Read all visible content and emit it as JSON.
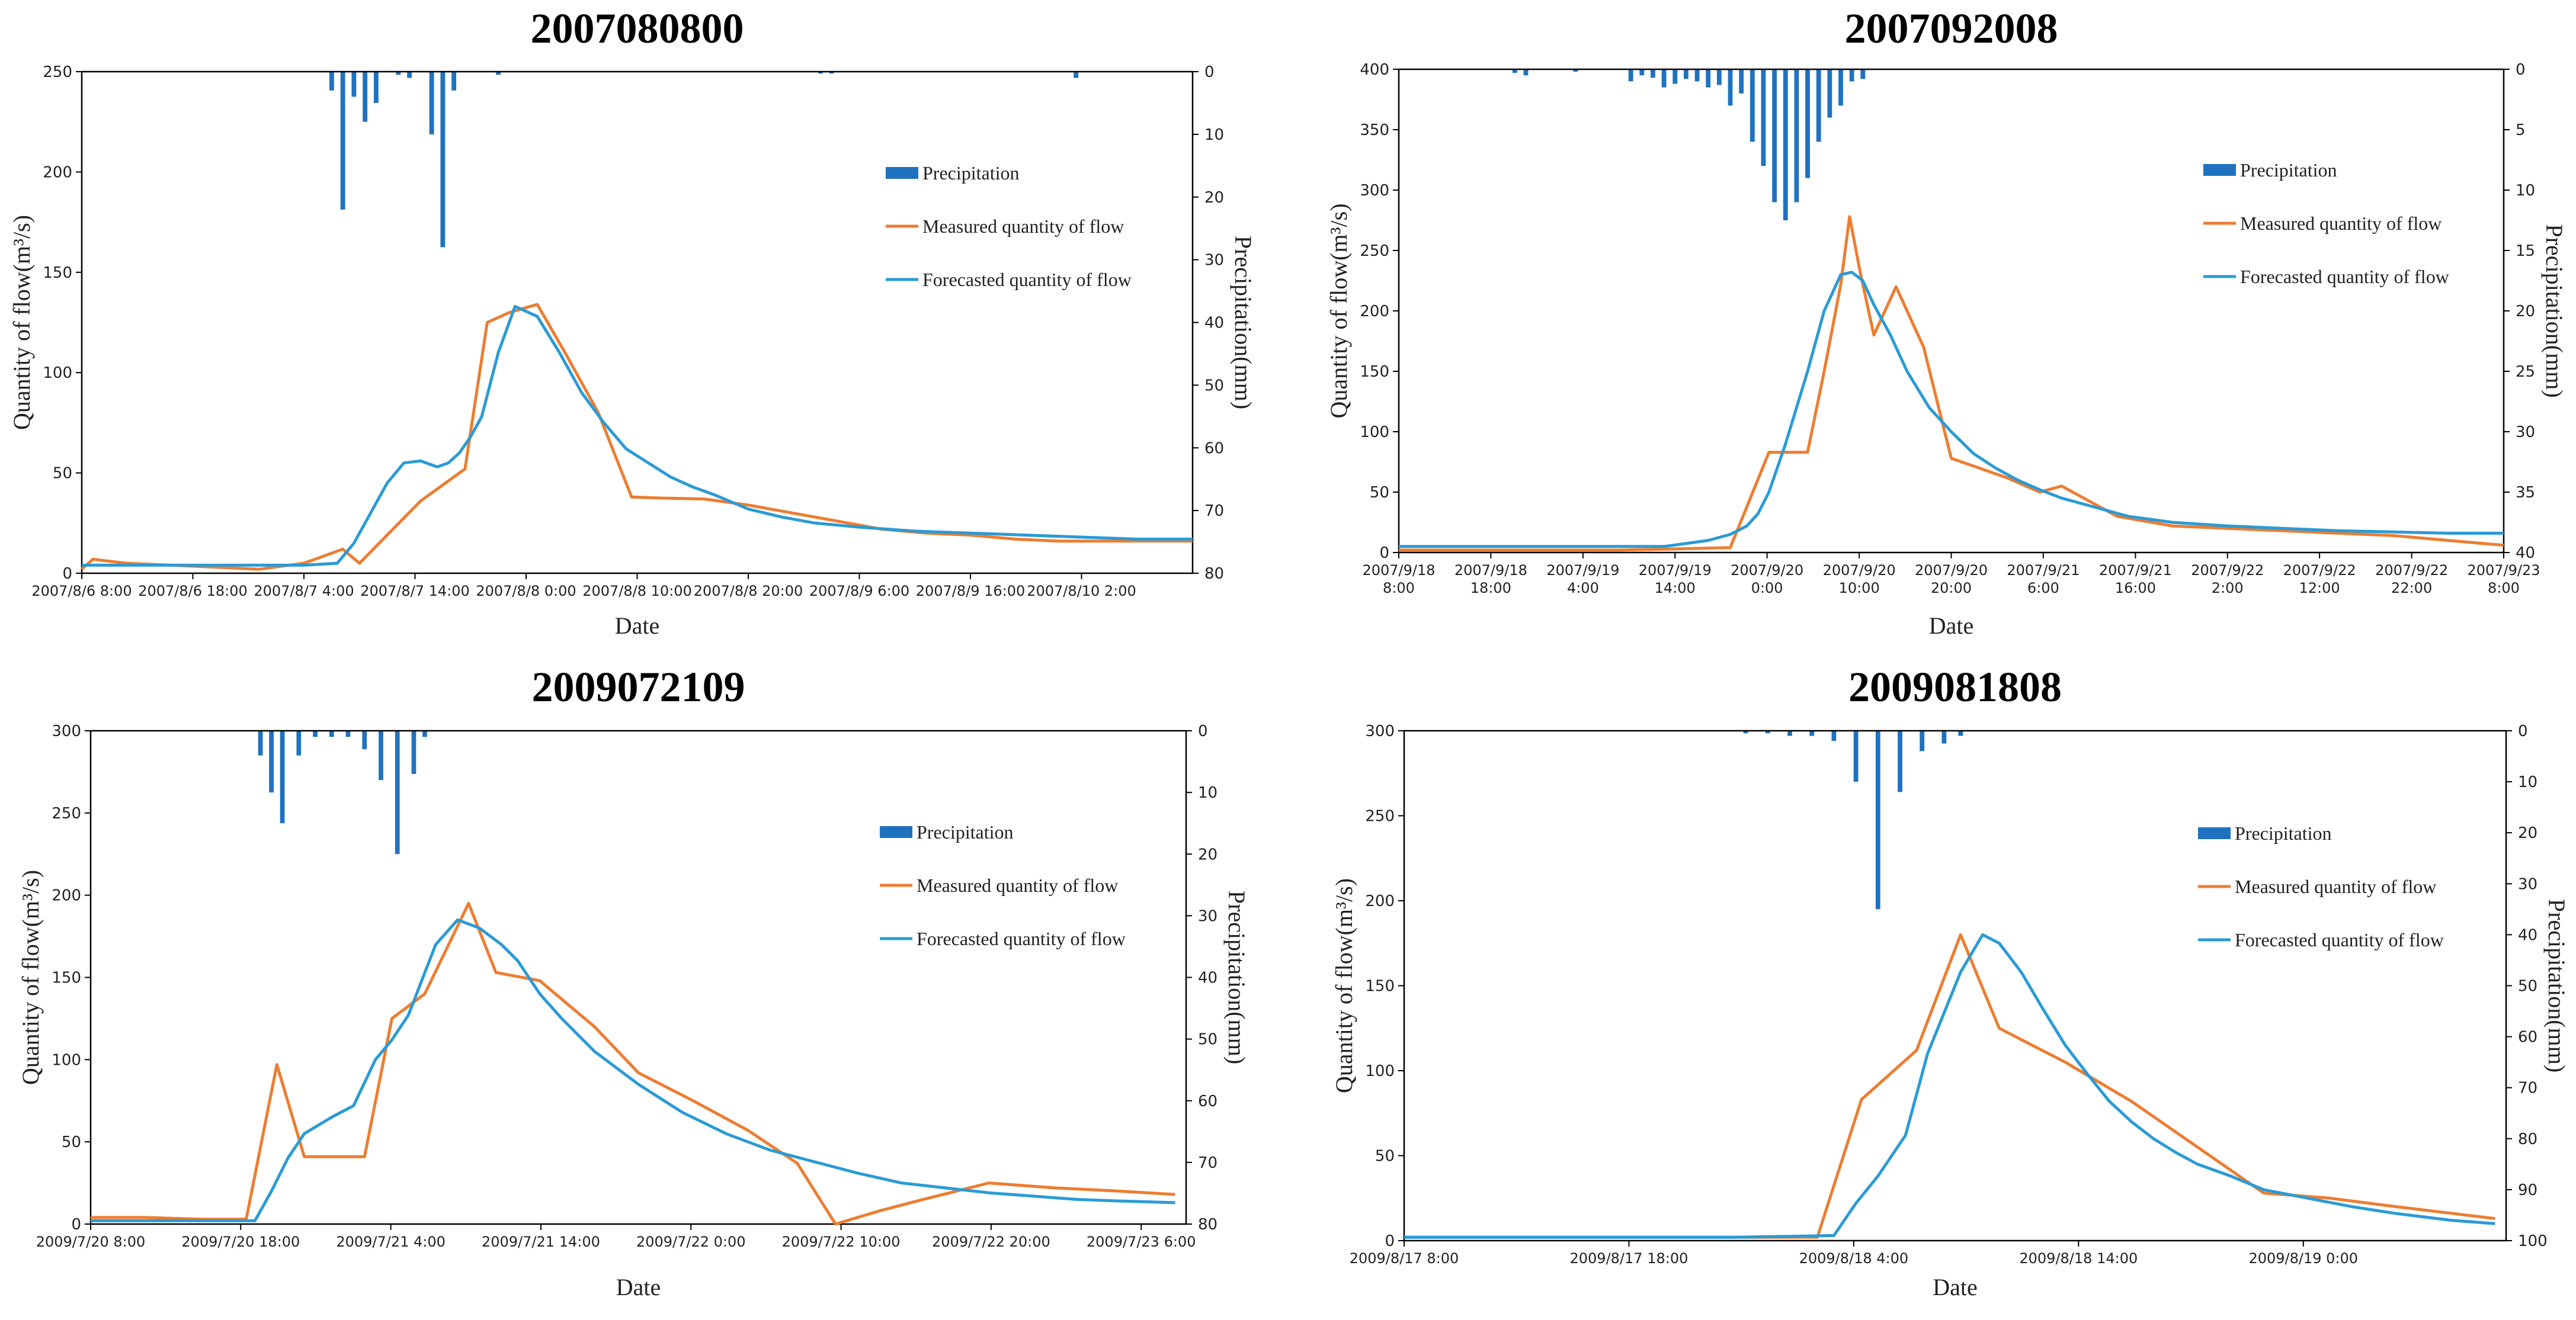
{
  "colors": {
    "measured": "#ED7D31",
    "forecast": "#2A9BD6",
    "precip": "#1F72C0",
    "axis": "#000000"
  },
  "legend_labels": {
    "precipitation": "Precipitation",
    "measured": "Measured quantity of flow",
    "forecast": "Forecasted quantity of flow"
  },
  "chart_data": [
    {
      "type": "line",
      "title": "2007080800",
      "xlabel": "Date",
      "ylabel": "Quantity of flow(m³/s)",
      "y2label": "Precipitation(mm)",
      "legend_position": "right",
      "xlim": [
        0,
        100
      ],
      "ylim": [
        0,
        250
      ],
      "yticks": [
        0,
        50,
        100,
        150,
        200,
        250
      ],
      "y2lim": [
        0,
        80
      ],
      "y2ticks": [
        0,
        10,
        20,
        30,
        40,
        50,
        60,
        70,
        80
      ],
      "x_tick_labels": [
        {
          "x": 0,
          "lines": [
            "2007/8/6 8:00"
          ]
        },
        {
          "x": 10,
          "lines": [
            "2007/8/6 18:00"
          ]
        },
        {
          "x": 20,
          "lines": [
            "2007/8/7 4:00"
          ]
        },
        {
          "x": 30,
          "lines": [
            "2007/8/7 14:00"
          ]
        },
        {
          "x": 40,
          "lines": [
            "2007/8/8 0:00"
          ]
        },
        {
          "x": 50,
          "lines": [
            "2007/8/8 10:00"
          ]
        },
        {
          "x": 60,
          "lines": [
            "2007/8/8 20:00"
          ]
        },
        {
          "x": 70,
          "lines": [
            "2007/8/9 6:00"
          ]
        },
        {
          "x": 80,
          "lines": [
            "2007/8/9 16:00"
          ]
        },
        {
          "x": 90,
          "lines": [
            "2007/8/10 2:00"
          ]
        }
      ],
      "series": [
        {
          "name": "Measured quantity of flow",
          "color_key": "measured",
          "x": [
            0,
            1,
            4,
            8,
            12,
            16,
            20,
            23.5,
            25,
            30.5,
            34.5,
            36.5,
            38.5,
            41,
            43.5,
            46.5,
            49.5,
            52,
            56,
            60,
            64,
            68,
            72,
            76,
            80,
            84,
            88,
            92,
            96,
            100
          ],
          "y": [
            2,
            7,
            5,
            4,
            3,
            2,
            5,
            12,
            5,
            36,
            52,
            125,
            130,
            134,
            110,
            80,
            38,
            37.5,
            37,
            34,
            30,
            26,
            22,
            20,
            19,
            17,
            16,
            16,
            16,
            16
          ]
        },
        {
          "name": "Forecasted quantity of flow",
          "color_key": "forecast",
          "x": [
            0,
            5,
            10,
            15,
            20,
            23,
            24.5,
            26,
            27.5,
            29,
            30.5,
            32,
            33,
            34,
            35,
            36,
            37.5,
            39,
            41,
            43,
            45,
            47,
            49,
            51,
            53,
            55,
            57,
            60,
            63,
            66,
            70,
            75,
            80,
            85,
            90,
            95,
            100
          ],
          "y": [
            4,
            4,
            4,
            4,
            4,
            5,
            15,
            30,
            45,
            55,
            56,
            53,
            55,
            60,
            68,
            78,
            110,
            133,
            128,
            110,
            90,
            75,
            62,
            55,
            48,
            43,
            39,
            32,
            28,
            25,
            23,
            21,
            20,
            19,
            18,
            17,
            17
          ]
        }
      ],
      "bars": {
        "name": "Precipitation",
        "color_key": "precip",
        "x": [
          22.5,
          23.5,
          24.5,
          25.5,
          26.5,
          28.5,
          29.5,
          31.5,
          32.5,
          33.5,
          37.5,
          66.5,
          67.5,
          89.5
        ],
        "y": [
          3,
          22,
          4,
          8,
          5,
          0.5,
          1,
          10,
          28,
          3,
          0.5,
          0.3,
          0.3,
          1
        ]
      }
    },
    {
      "type": "line",
      "title": "2007092008",
      "xlabel": "Date",
      "ylabel": "Quantity of flow(m³/s)",
      "y2label": "Precipitation(mm)",
      "legend_position": "right",
      "xlim": [
        0,
        100
      ],
      "ylim": [
        0,
        400
      ],
      "yticks": [
        0,
        50,
        100,
        150,
        200,
        250,
        300,
        350,
        400
      ],
      "y2lim": [
        0,
        40
      ],
      "y2ticks": [
        0,
        5,
        10,
        15,
        20,
        25,
        30,
        35,
        40
      ],
      "x_tick_labels": [
        {
          "x": 0,
          "lines": [
            "2007/9/18",
            "8:00"
          ]
        },
        {
          "x": 8.33,
          "lines": [
            "2007/9/18",
            "18:00"
          ]
        },
        {
          "x": 16.67,
          "lines": [
            "2007/9/19",
            "4:00"
          ]
        },
        {
          "x": 25,
          "lines": [
            "2007/9/19",
            "14:00"
          ]
        },
        {
          "x": 33.33,
          "lines": [
            "2007/9/20",
            "0:00"
          ]
        },
        {
          "x": 41.67,
          "lines": [
            "2007/9/20",
            "10:00"
          ]
        },
        {
          "x": 50,
          "lines": [
            "2007/9/20",
            "20:00"
          ]
        },
        {
          "x": 58.33,
          "lines": [
            "2007/9/21",
            "6:00"
          ]
        },
        {
          "x": 66.67,
          "lines": [
            "2007/9/21",
            "16:00"
          ]
        },
        {
          "x": 75,
          "lines": [
            "2007/9/22",
            "2:00"
          ]
        },
        {
          "x": 83.33,
          "lines": [
            "2007/9/22",
            "12:00"
          ]
        },
        {
          "x": 91.67,
          "lines": [
            "2007/9/22",
            "22:00"
          ]
        },
        {
          "x": 100,
          "lines": [
            "2007/9/23",
            "8:00"
          ]
        }
      ],
      "series": [
        {
          "name": "Measured quantity of flow",
          "color_key": "measured",
          "x": [
            0,
            10,
            20,
            25,
            30,
            33.5,
            37,
            38.5,
            40,
            40.8,
            41.8,
            43,
            45,
            47.5,
            50,
            55,
            58,
            60,
            63,
            65,
            70,
            80,
            90,
            100
          ],
          "y": [
            2,
            2,
            2,
            3,
            4,
            83,
            83,
            150,
            222,
            278,
            230,
            180,
            220,
            170,
            78,
            62,
            50,
            55,
            40,
            30,
            22,
            18,
            14,
            6
          ]
        },
        {
          "name": "Forecasted quantity of flow",
          "color_key": "forecast",
          "x": [
            0,
            10,
            20,
            24,
            28,
            30,
            31.5,
            32.5,
            33.5,
            35,
            37,
            38.5,
            40,
            41,
            42,
            43,
            44.5,
            46,
            48,
            50,
            52,
            54,
            56,
            58,
            60,
            62,
            64,
            66,
            70,
            75,
            80,
            85,
            90,
            95,
            100
          ],
          "y": [
            5,
            5,
            5,
            5,
            10,
            15,
            22,
            32,
            50,
            90,
            150,
            200,
            230,
            232,
            225,
            205,
            180,
            150,
            120,
            100,
            82,
            70,
            60,
            52,
            45,
            40,
            35,
            30,
            25,
            22,
            20,
            18,
            17,
            16,
            16
          ]
        }
      ],
      "bars": {
        "name": "Precipitation",
        "color_key": "precip",
        "x": [
          10.5,
          11.5,
          16,
          21,
          22,
          23,
          24,
          25,
          26,
          27,
          28,
          29,
          30,
          31,
          32,
          33,
          34,
          35,
          36,
          37,
          38,
          39,
          40,
          41,
          42
        ],
        "y": [
          0.3,
          0.5,
          0.2,
          1,
          0.5,
          0.7,
          1.5,
          1.2,
          0.8,
          1,
          1.5,
          1.3,
          3,
          2,
          6,
          8,
          11,
          12.5,
          11,
          9,
          6,
          4,
          3,
          1,
          0.8
        ]
      }
    },
    {
      "type": "line",
      "title": "2009072109",
      "xlabel": "Date",
      "ylabel": "Quantity of flow(m³/s)",
      "y2label": "Precipitation(mm)",
      "legend_position": "right",
      "xlim": [
        0,
        100
      ],
      "ylim": [
        0,
        300
      ],
      "yticks": [
        0,
        50,
        100,
        150,
        200,
        250,
        300
      ],
      "y2lim": [
        0,
        80
      ],
      "y2ticks": [
        0,
        10,
        20,
        30,
        40,
        50,
        60,
        70,
        80
      ],
      "x_tick_labels": [
        {
          "x": 0,
          "lines": [
            "2009/7/20 8:00"
          ]
        },
        {
          "x": 13.7,
          "lines": [
            "2009/7/20 18:00"
          ]
        },
        {
          "x": 27.4,
          "lines": [
            "2009/7/21 4:00"
          ]
        },
        {
          "x": 41.1,
          "lines": [
            "2009/7/21 14:00"
          ]
        },
        {
          "x": 54.8,
          "lines": [
            "2009/7/22 0:00"
          ]
        },
        {
          "x": 68.5,
          "lines": [
            "2009/7/22 10:00"
          ]
        },
        {
          "x": 82.2,
          "lines": [
            "2009/7/22 20:00"
          ]
        },
        {
          "x": 95.9,
          "lines": [
            "2009/7/23 6:00"
          ]
        }
      ],
      "series": [
        {
          "name": "Measured quantity of flow",
          "color_key": "measured",
          "x": [
            0,
            5,
            10,
            14.2,
            17,
            19.5,
            21,
            25,
            27.5,
            30.5,
            34.5,
            37,
            41,
            46,
            50,
            55,
            60,
            64.5,
            68,
            72,
            76,
            82,
            88,
            94,
            99
          ],
          "y": [
            4,
            4,
            3,
            3,
            97,
            41,
            41,
            41,
            125,
            140,
            195,
            153,
            148,
            120,
            92,
            75,
            57,
            37,
            0,
            8,
            15,
            25,
            22,
            20,
            18
          ]
        },
        {
          "name": "Forecasted quantity of flow",
          "color_key": "forecast",
          "x": [
            0,
            5,
            10,
            15,
            16.5,
            18,
            19.5,
            22,
            24,
            26,
            27.5,
            29,
            31.5,
            33.5,
            35.5,
            37.5,
            39,
            41,
            43,
            46,
            50,
            54,
            58,
            62,
            66,
            70,
            74,
            78,
            82,
            86,
            90,
            94,
            99
          ],
          "y": [
            2,
            2,
            2,
            2,
            20,
            40,
            55,
            65,
            72,
            100,
            112,
            127,
            170,
            185,
            180,
            170,
            160,
            140,
            125,
            105,
            85,
            68,
            55,
            45,
            38,
            31,
            25,
            22,
            19,
            17,
            15,
            14,
            13
          ]
        }
      ],
      "bars": {
        "name": "Precipitation",
        "color_key": "precip",
        "x": [
          15.5,
          16.5,
          17.5,
          19,
          20.5,
          22,
          23.5,
          25,
          26.5,
          28,
          29.5,
          30.5
        ],
        "y": [
          4,
          10,
          15,
          4,
          1,
          1,
          1,
          3,
          8,
          20,
          7,
          1
        ]
      }
    },
    {
      "type": "line",
      "title": "2009081808",
      "xlabel": "Date",
      "ylabel": "Quantity of flow(m³/s)",
      "y2label": "Precipitation(mm)",
      "legend_position": "right",
      "xlim": [
        0,
        100
      ],
      "ylim": [
        0,
        300
      ],
      "yticks": [
        0,
        50,
        100,
        150,
        200,
        250,
        300
      ],
      "y2lim": [
        0,
        100
      ],
      "y2ticks": [
        0,
        10,
        20,
        30,
        40,
        50,
        60,
        70,
        80,
        90,
        100
      ],
      "x_tick_labels": [
        {
          "x": 0,
          "lines": [
            "2009/8/17 8:00"
          ]
        },
        {
          "x": 20.4,
          "lines": [
            "2009/8/17 18:00"
          ]
        },
        {
          "x": 40.8,
          "lines": [
            "2009/8/18 4:00"
          ]
        },
        {
          "x": 61.2,
          "lines": [
            "2009/8/18 14:00"
          ]
        },
        {
          "x": 81.6,
          "lines": [
            "2009/8/19 0:00"
          ]
        }
      ],
      "series": [
        {
          "name": "Measured quantity of flow",
          "color_key": "measured",
          "x": [
            0,
            10,
            20,
            30,
            37.5,
            41.5,
            46.5,
            50.5,
            54,
            60,
            66,
            72,
            78,
            84,
            90,
            99
          ],
          "y": [
            2,
            2,
            2,
            2,
            2,
            83,
            112,
            180,
            125,
            105,
            82,
            55,
            28,
            25,
            20,
            13
          ]
        },
        {
          "name": "Forecasted quantity of flow",
          "color_key": "forecast",
          "x": [
            0,
            10,
            20,
            30,
            39,
            41,
            43,
            45.5,
            47.5,
            50.5,
            52.5,
            54,
            56,
            58,
            60,
            62,
            64,
            66,
            68,
            70,
            72,
            75,
            78,
            82,
            86,
            90,
            95,
            99
          ],
          "y": [
            2,
            2,
            2,
            2,
            3,
            22,
            38,
            62,
            110,
            158,
            180,
            175,
            158,
            136,
            115,
            98,
            82,
            70,
            60,
            52,
            45,
            38,
            30,
            25,
            20,
            16,
            12,
            10
          ]
        },
        {
          "name": "Forecasted quantity of flow",
          "color_key": "forecast",
          "hidden": true,
          "x": [],
          "y": []
        }
      ],
      "bars": {
        "name": "Precipitation",
        "color_key": "precip",
        "x": [
          31,
          33,
          35,
          37,
          39,
          41,
          43,
          45,
          47,
          49,
          50.5
        ],
        "y": [
          0.5,
          0.5,
          1,
          1,
          2,
          10,
          35,
          12,
          4,
          2.5,
          1
        ]
      }
    }
  ]
}
